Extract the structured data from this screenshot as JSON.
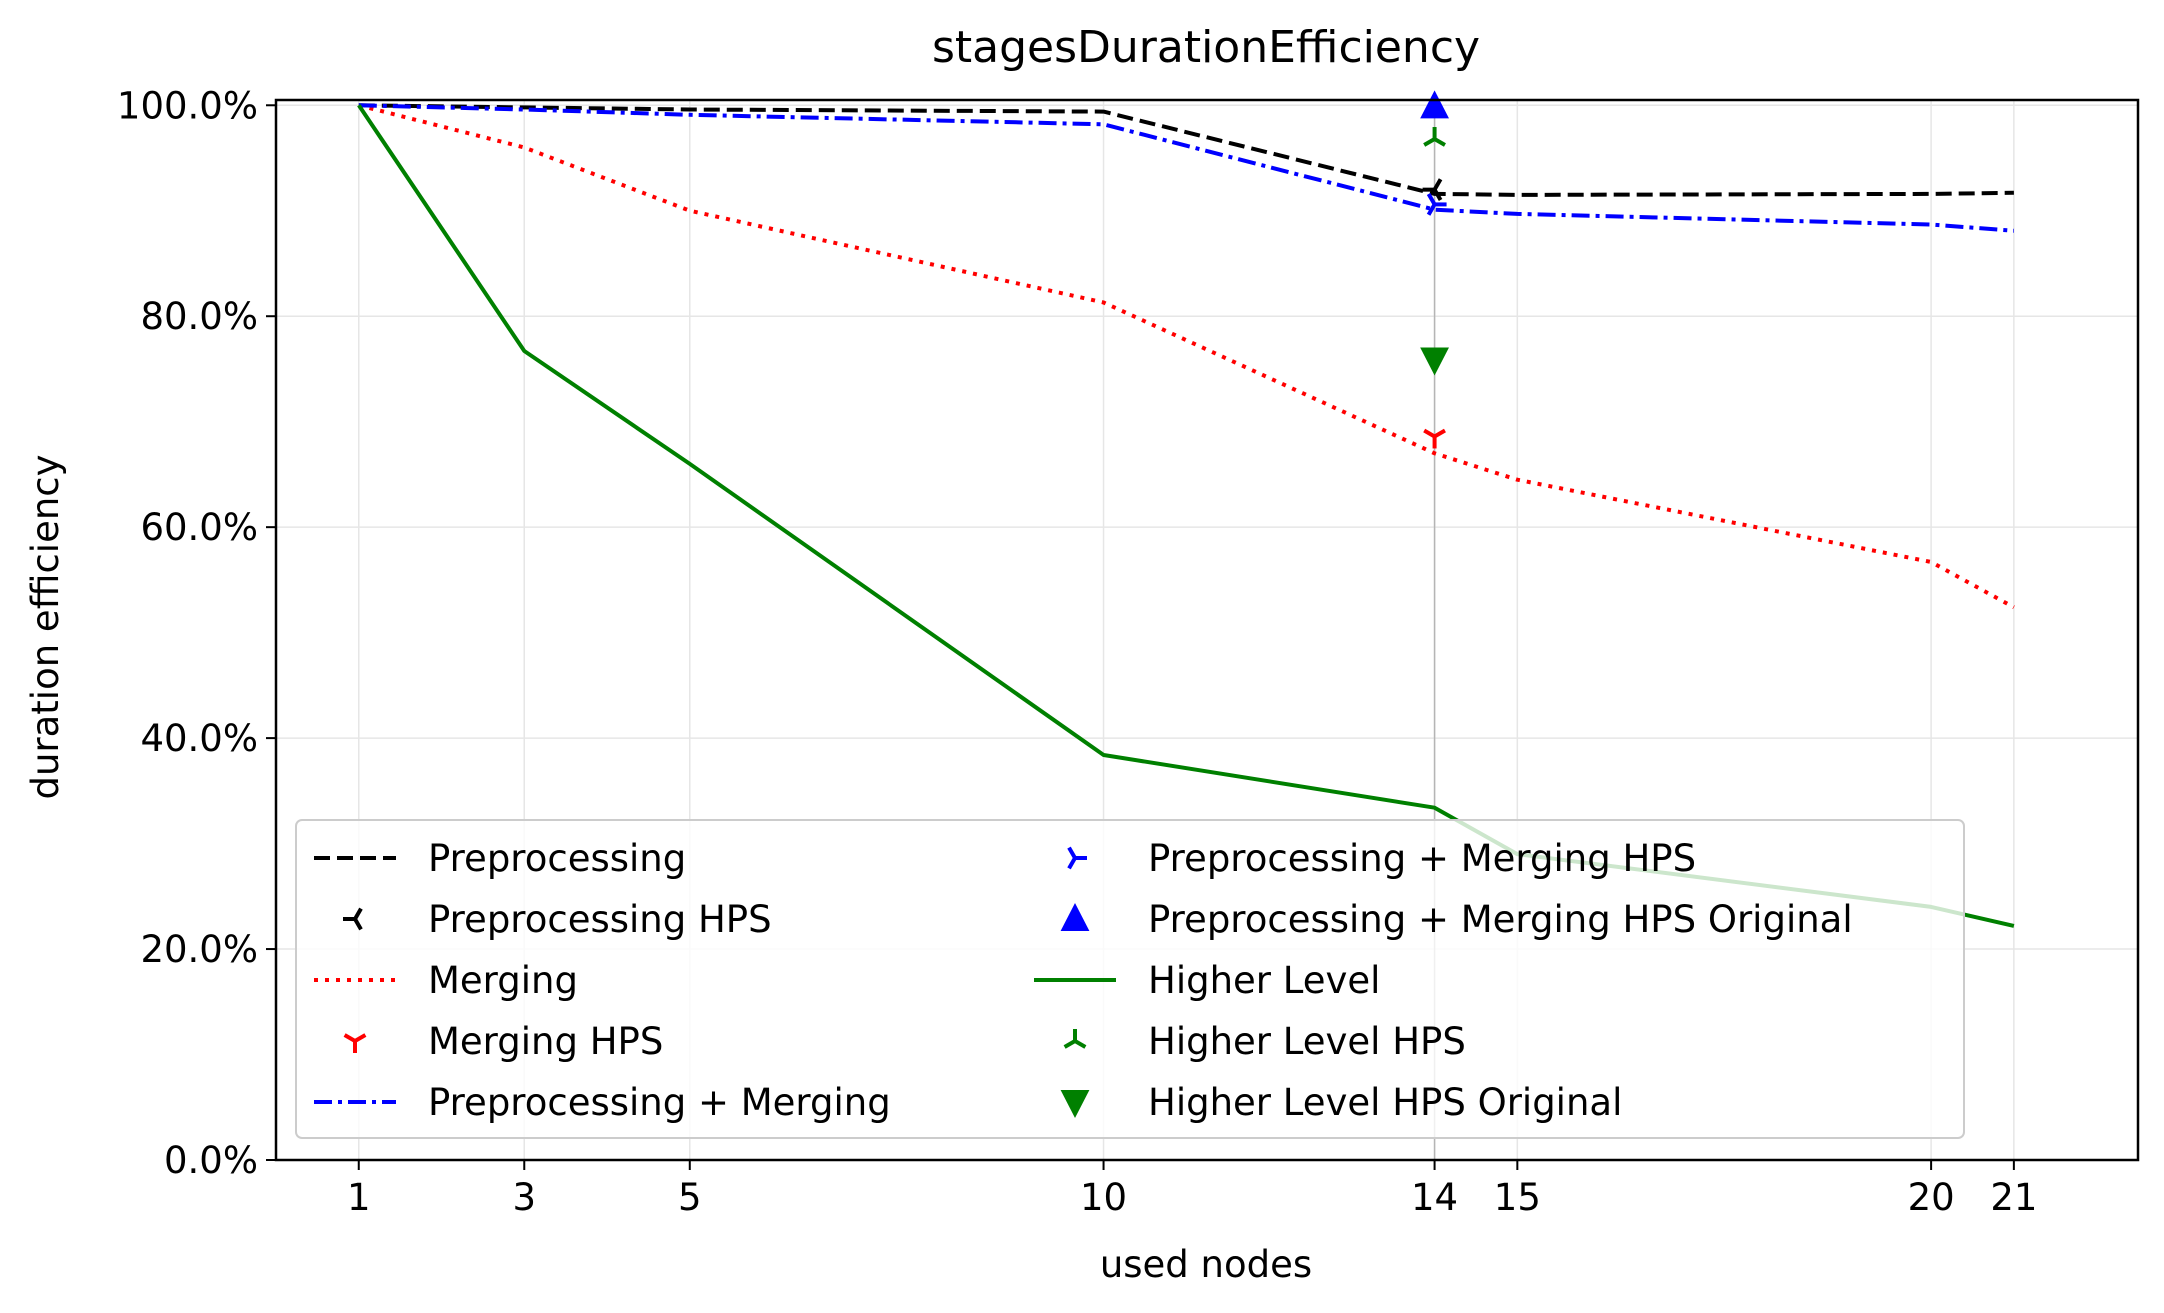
{
  "chart_data": {
    "type": "line",
    "title": "stagesDurationEfficiency",
    "xlabel": "used nodes",
    "ylabel": "duration efficiency",
    "xlim": [
      0,
      22.5
    ],
    "ylim": [
      0,
      100.5
    ],
    "xticks": [
      1,
      3,
      5,
      10,
      14,
      15,
      20,
      21
    ],
    "xtick_labels": [
      "1",
      "3",
      "5",
      "10",
      "14",
      "15",
      "20",
      "21"
    ],
    "yticks": [
      0,
      20,
      40,
      60,
      80,
      100
    ],
    "ytick_labels": [
      "0.0%",
      "20.0%",
      "40.0%",
      "60.0%",
      "80.0%",
      "100.0%"
    ],
    "grid": true,
    "vline_x": 14,
    "legend_position": "lower-left",
    "x": [
      1,
      3,
      5,
      10,
      14,
      15,
      20,
      21
    ],
    "series": [
      {
        "name": "Preprocessing",
        "kind": "line",
        "style": "dashed",
        "color": "#000000",
        "values": [
          100,
          99.8,
          99.6,
          99.4,
          91.6,
          91.5,
          91.6,
          91.7
        ]
      },
      {
        "name": "Preprocessing HPS",
        "kind": "marker",
        "marker": "tri-left",
        "color": "#000000",
        "points": [
          [
            14,
            92.0
          ]
        ]
      },
      {
        "name": "Merging",
        "kind": "line",
        "style": "dotted",
        "color": "#ff0000",
        "values": [
          100,
          96.0,
          90.0,
          81.3,
          67.0,
          64.5,
          56.7,
          52.4
        ]
      },
      {
        "name": "Merging HPS",
        "kind": "marker",
        "marker": "tri-down",
        "color": "#ff0000",
        "points": [
          [
            14,
            68.6
          ]
        ]
      },
      {
        "name": "Preprocessing + Merging",
        "kind": "line",
        "style": "dashdot",
        "color": "#0000ff",
        "values": [
          100,
          99.6,
          99.1,
          98.2,
          90.1,
          89.7,
          88.7,
          88.1
        ]
      },
      {
        "name": "Preprocessing + Merging HPS",
        "kind": "marker",
        "marker": "tri-right",
        "color": "#0000ff",
        "points": [
          [
            14,
            90.6
          ]
        ]
      },
      {
        "name": "Preprocessing + Merging HPS Original",
        "kind": "marker",
        "marker": "triangle-up",
        "color": "#0000ff",
        "points": [
          [
            14,
            99.9
          ]
        ]
      },
      {
        "name": "Higher Level",
        "kind": "line",
        "style": "solid",
        "color": "#008000",
        "values": [
          100,
          76.7,
          66.0,
          38.4,
          33.4,
          29.0,
          24.0,
          22.2
        ]
      },
      {
        "name": "Higher Level HPS",
        "kind": "marker",
        "marker": "tri-up",
        "color": "#008000",
        "points": [
          [
            14,
            96.8
          ]
        ]
      },
      {
        "name": "Higher Level HPS Original",
        "kind": "marker",
        "marker": "triangle-down",
        "color": "#008000",
        "points": [
          [
            14,
            75.9
          ]
        ]
      }
    ]
  }
}
